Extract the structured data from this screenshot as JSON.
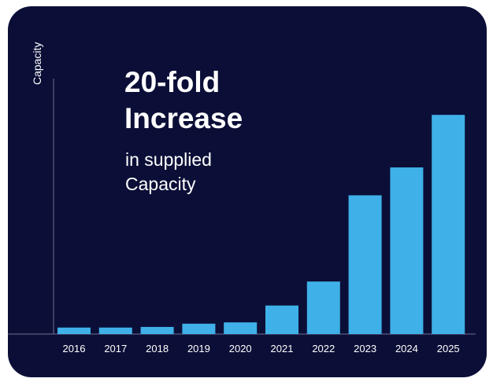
{
  "chart_data": {
    "type": "bar",
    "title": "20-fold Increase",
    "subtitle": "in supplied Capacity",
    "ylabel": "Capacity",
    "xlabel": "",
    "categories": [
      "2016",
      "2017",
      "2018",
      "2019",
      "2020",
      "2021",
      "2022",
      "2023",
      "2024",
      "2025"
    ],
    "values": [
      1,
      1,
      1.1,
      1.6,
      1.8,
      4.4,
      8.1,
      21.4,
      25.7,
      33.8
    ],
    "ylim": [
      0,
      36
    ],
    "grid": false,
    "legend": "none",
    "colors": {
      "background": "#0b0f37",
      "bar": "#3fb0e8",
      "axis": "#6c7196",
      "text": "#ffffff"
    }
  },
  "headline": {
    "line1": "20-fold",
    "line2": "Increase"
  },
  "sub": {
    "line1": "in supplied",
    "line2": "Capacity"
  }
}
